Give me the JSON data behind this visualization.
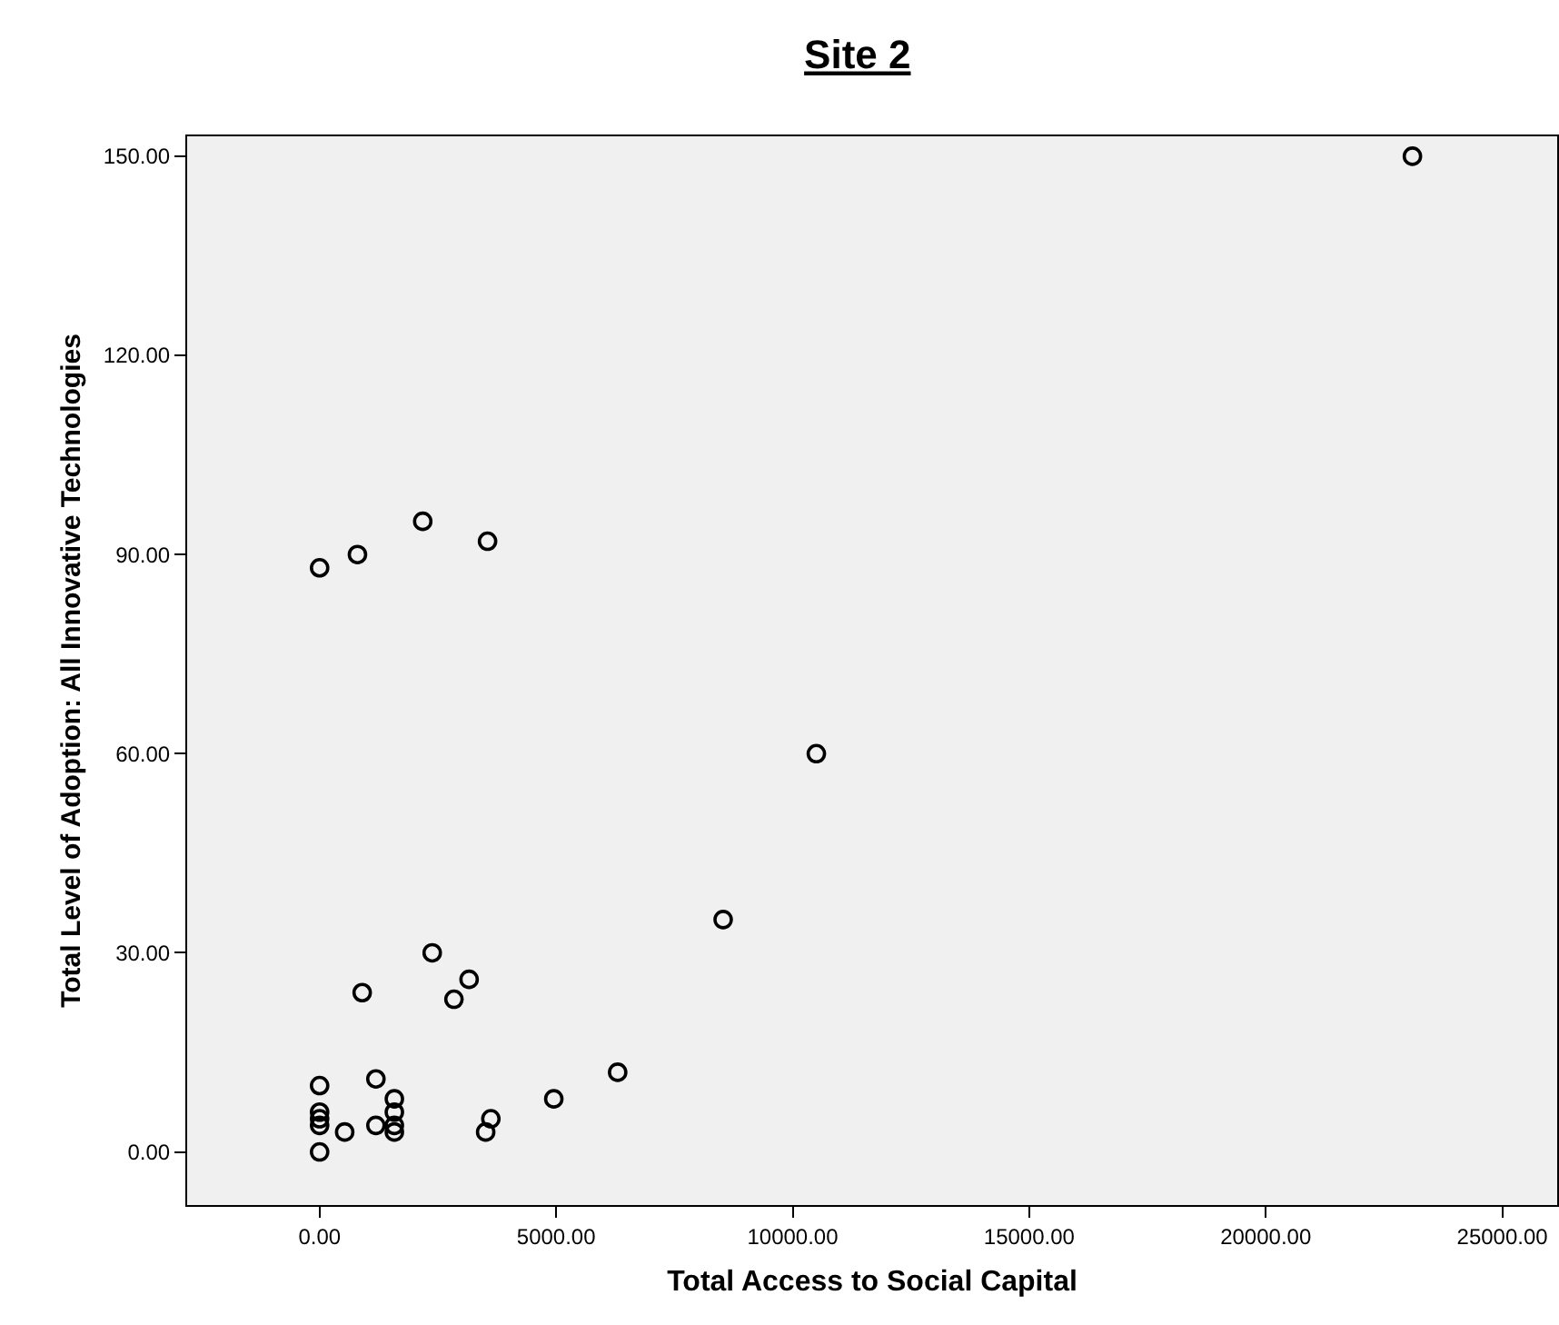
{
  "chart_data": {
    "type": "scatter",
    "title": "Site 2",
    "xlabel": "Total Access to Social Capital",
    "ylabel": "Total Level of Adoption: All Innovative Technologies",
    "x": [
      23100,
      0,
      800,
      2180,
      3550,
      10500,
      8530,
      2380,
      900,
      3160,
      2840,
      0,
      1190,
      1580,
      1580,
      1580,
      1580,
      1190,
      530,
      0,
      0,
      0,
      0,
      4950,
      6300,
      3620,
      3510
    ],
    "values": [
      150,
      88,
      90,
      95,
      92,
      60,
      35,
      30,
      24,
      26,
      23,
      10,
      11,
      8,
      6,
      4,
      3,
      4,
      3,
      6,
      5,
      4,
      0,
      8,
      12,
      5,
      3
    ],
    "color": "#000000",
    "marker": "circle",
    "grid": false,
    "xlim": [
      -2800,
      26160
    ],
    "ylim": [
      -8,
      153
    ],
    "xticks": [
      {
        "value": 0,
        "label": "0.00"
      },
      {
        "value": 5000,
        "label": "5000.00"
      },
      {
        "value": 10000,
        "label": "10000.00"
      },
      {
        "value": 15000,
        "label": "15000.00"
      },
      {
        "value": 20000,
        "label": "20000.00"
      },
      {
        "value": 25000,
        "label": "25000.00"
      }
    ],
    "yticks": [
      {
        "value": 0,
        "label": "0.00"
      },
      {
        "value": 30,
        "label": "30.00"
      },
      {
        "value": 60,
        "label": "60.00"
      },
      {
        "value": 90,
        "label": "90.00"
      },
      {
        "value": 120,
        "label": "120.00"
      },
      {
        "value": 150,
        "label": "150.00"
      }
    ]
  }
}
